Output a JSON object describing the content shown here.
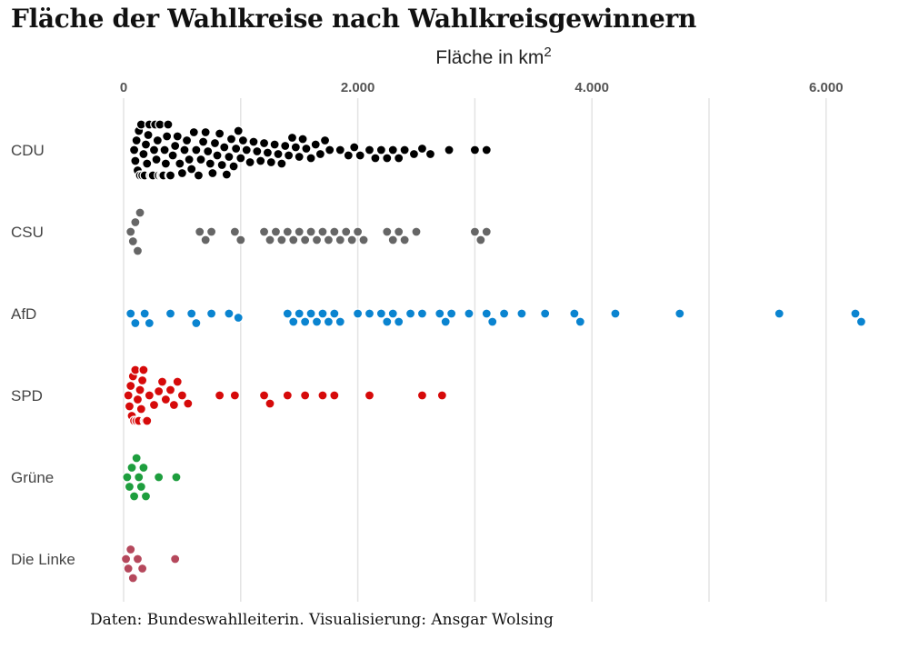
{
  "chart_data": {
    "type": "scatter",
    "title": "Fläche der Wahlkreise nach Wahlkreisgewinnern",
    "xlabel": "Fläche in km",
    "xlabel_superscript": "2",
    "ylabel": "",
    "xlim": [
      -100,
      6350
    ],
    "x_ticks": [
      0,
      2000,
      4000,
      6000
    ],
    "x_tick_labels": [
      "0",
      "2.000",
      "4.000",
      "6.000"
    ],
    "minor_grid": [
      1000,
      3000,
      5000
    ],
    "grid": true,
    "categories": [
      "CDU",
      "CSU",
      "AfD",
      "SPD",
      "Grüne",
      "Die Linke"
    ],
    "series": [
      {
        "name": "CDU",
        "color": "#000000",
        "x": [
          90,
          100,
          110,
          120,
          130,
          140,
          150,
          160,
          170,
          180,
          190,
          200,
          210,
          220,
          230,
          240,
          250,
          260,
          270,
          280,
          290,
          300,
          310,
          320,
          330,
          340,
          350,
          360,
          370,
          380,
          390,
          400,
          420,
          440,
          460,
          480,
          500,
          520,
          540,
          560,
          580,
          600,
          620,
          640,
          660,
          680,
          700,
          720,
          740,
          760,
          780,
          800,
          820,
          840,
          860,
          880,
          900,
          920,
          940,
          960,
          980,
          1000,
          1020,
          1050,
          1080,
          1110,
          1140,
          1170,
          1200,
          1230,
          1260,
          1290,
          1320,
          1350,
          1380,
          1410,
          1440,
          1470,
          1500,
          1530,
          1560,
          1600,
          1640,
          1680,
          1720,
          1760,
          1850,
          1920,
          1970,
          2020,
          2100,
          2150,
          2200,
          2250,
          2300,
          2350,
          2400,
          2480,
          2550,
          2620,
          2780,
          3000,
          3100
        ]
      },
      {
        "name": "CSU",
        "color": "#666666",
        "x": [
          60,
          80,
          100,
          120,
          140,
          650,
          700,
          750,
          950,
          1000,
          1200,
          1250,
          1300,
          1350,
          1400,
          1450,
          1500,
          1550,
          1600,
          1650,
          1700,
          1750,
          1800,
          1850,
          1900,
          1950,
          2000,
          2050,
          2250,
          2300,
          2350,
          2400,
          2500,
          3000,
          3050,
          3100
        ]
      },
      {
        "name": "AfD",
        "color": "#0a84d0",
        "x": [
          60,
          100,
          180,
          220,
          400,
          580,
          620,
          750,
          900,
          980,
          1400,
          1450,
          1500,
          1550,
          1600,
          1650,
          1700,
          1750,
          1800,
          1850,
          2000,
          2100,
          2200,
          2250,
          2300,
          2350,
          2450,
          2550,
          2700,
          2750,
          2800,
          2950,
          3100,
          3150,
          3250,
          3400,
          3600,
          3850,
          3900,
          4200,
          4750,
          5600,
          6250,
          6300
        ]
      },
      {
        "name": "SPD",
        "color": "#d60a0a",
        "x": [
          40,
          50,
          60,
          70,
          80,
          90,
          100,
          110,
          120,
          130,
          140,
          150,
          160,
          170,
          180,
          190,
          200,
          220,
          260,
          300,
          330,
          360,
          400,
          430,
          460,
          500,
          550,
          820,
          950,
          1200,
          1250,
          1400,
          1550,
          1700,
          1800,
          2100,
          2550,
          2720
        ]
      },
      {
        "name": "Grüne",
        "color": "#1e9e3e",
        "x": [
          30,
          50,
          70,
          90,
          110,
          130,
          150,
          170,
          190,
          300,
          450
        ]
      },
      {
        "name": "Die Linke",
        "color": "#b5485c",
        "x": [
          20,
          40,
          60,
          80,
          120,
          160,
          440
        ]
      }
    ]
  },
  "caption": "Daten: Bundeswahlleiterin. Visualisierung: Ansgar Wolsing"
}
